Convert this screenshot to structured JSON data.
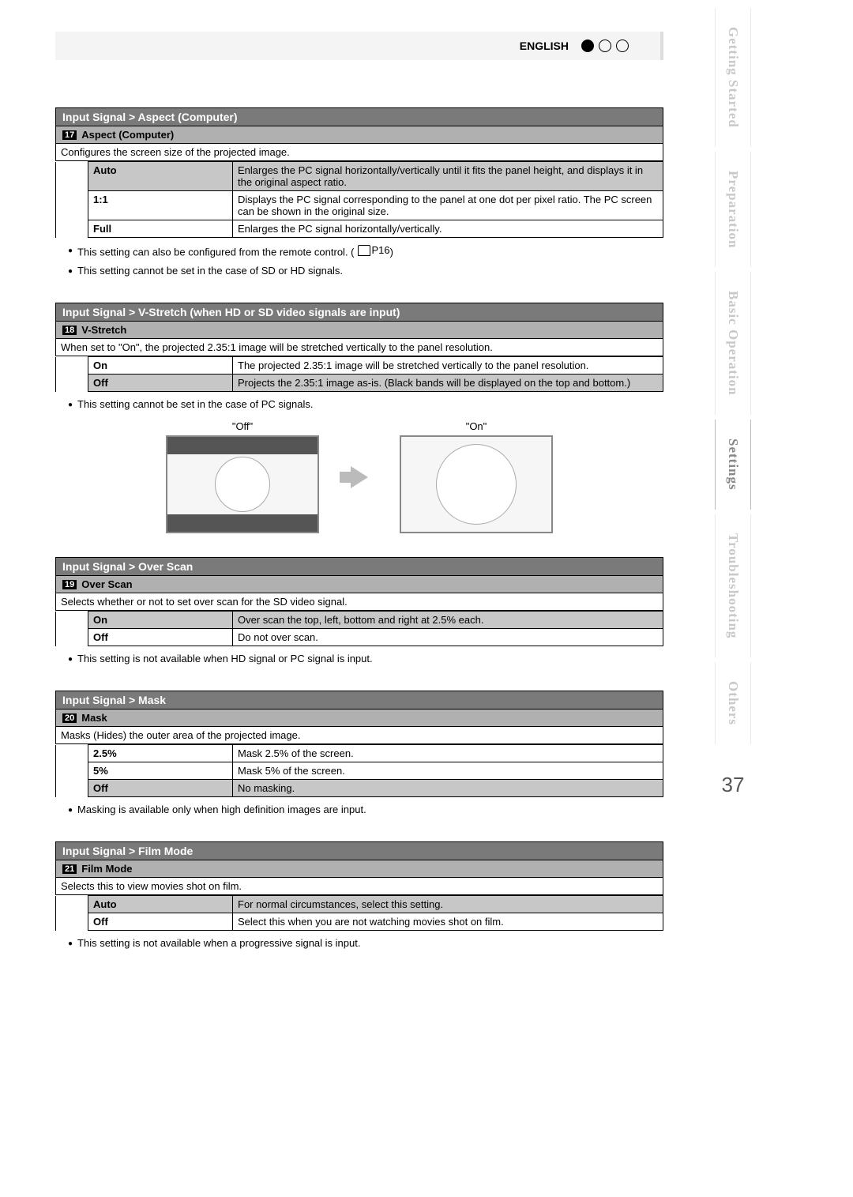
{
  "header": {
    "language": "ENGLISH"
  },
  "sideTabs": [
    {
      "label": "Getting Started",
      "active": false
    },
    {
      "label": "Preparation",
      "active": false
    },
    {
      "label": "Basic Operation",
      "active": false
    },
    {
      "label": "Settings",
      "active": true
    },
    {
      "label": "Troubleshooting",
      "active": false
    },
    {
      "label": "Others",
      "active": false
    }
  ],
  "pageNumber": "37",
  "sections": {
    "aspect": {
      "title": "Input Signal > Aspect (Computer)",
      "num": "17",
      "subtitle": "Aspect (Computer)",
      "desc": "Configures the screen size of the projected image.",
      "rows": [
        {
          "label": "Auto",
          "val": "Enlarges the PC signal horizontally/vertically until it fits the panel height, and displays it in the original aspect ratio.",
          "hl": true
        },
        {
          "label": "1:1",
          "val": "Displays the PC signal corresponding to the panel at one dot per pixel ratio. The PC screen can be shown in the original size.",
          "hl": false
        },
        {
          "label": "Full",
          "val": "Enlarges the PC signal horizontally/vertically.",
          "hl": false
        }
      ],
      "note1": "This setting can also be configured from the remote control. (",
      "note1ref": "P16",
      "note1tail": ")",
      "note2": "This setting cannot be set in the case of SD or HD signals."
    },
    "vstretch": {
      "title": "Input Signal > V-Stretch (when HD or SD video signals are input)",
      "num": "18",
      "subtitle": "V-Stretch",
      "desc": "When set to \"On\", the projected 2.35:1 image will be stretched vertically to the panel resolution.",
      "rows": [
        {
          "label": "On",
          "val": "The projected 2.35:1 image will be stretched vertically to the panel resolution.",
          "hl": false
        },
        {
          "label": "Off",
          "val": "Projects the 2.35:1 image as-is. (Black bands will be displayed on the top and bottom.)",
          "hl": true
        }
      ],
      "note1": "This setting cannot be set in the case of PC signals.",
      "offLabel": "\"Off\"",
      "onLabel": "\"On\""
    },
    "overscan": {
      "title": "Input Signal > Over Scan",
      "num": "19",
      "subtitle": "Over Scan",
      "desc": "Selects whether or not to set over scan for the SD video signal.",
      "rows": [
        {
          "label": "On",
          "val": "Over scan the top, left, bottom and right at 2.5% each.",
          "hl": true
        },
        {
          "label": "Off",
          "val": "Do not over scan.",
          "hl": false
        }
      ],
      "note1": "This setting is not available when HD signal or PC signal is input."
    },
    "mask": {
      "title": "Input Signal > Mask",
      "num": "20",
      "subtitle": "Mask",
      "desc": "Masks (Hides) the outer area of the projected image.",
      "rows": [
        {
          "label": "2.5%",
          "val": "Mask 2.5% of the screen.",
          "hl": false
        },
        {
          "label": "5%",
          "val": "Mask 5% of the screen.",
          "hl": false
        },
        {
          "label": "Off",
          "val": "No masking.",
          "hl": true
        }
      ],
      "note1": "Masking is available only when high definition images are input."
    },
    "filmmode": {
      "title": "Input Signal > Film Mode",
      "num": "21",
      "subtitle": "Film Mode",
      "desc": "Selects this to view movies shot on film.",
      "rows": [
        {
          "label": "Auto",
          "val": "For normal circumstances, select this setting.",
          "hl": true
        },
        {
          "label": "Off",
          "val": "Select this when you are not watching movies shot on film.",
          "hl": false
        }
      ],
      "note1": "This setting is not available when a progressive signal is input."
    }
  }
}
